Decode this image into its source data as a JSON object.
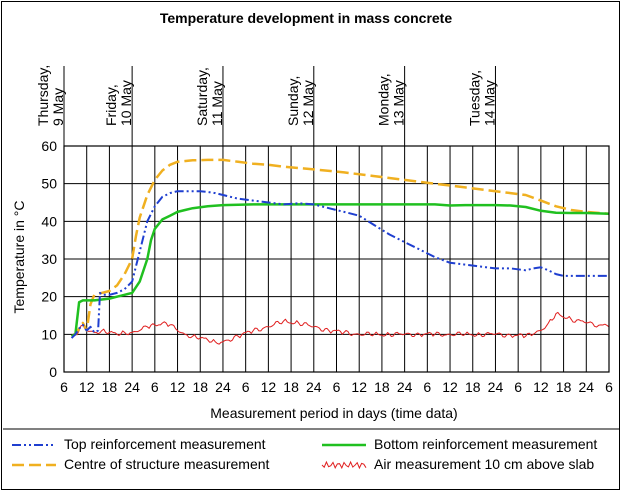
{
  "chart_data": {
    "type": "line",
    "title": "Temperature development in mass concrete",
    "xlabel": "Measurement period in days (time data)",
    "ylabel": "Temperature in °C",
    "ylim": [
      0,
      60
    ],
    "yticks": [
      "0",
      "10",
      "20",
      "30",
      "40",
      "50",
      "60"
    ],
    "xlim": [
      6,
      150
    ],
    "xticks": [
      "6",
      "12",
      "18",
      "24",
      "6",
      "12",
      "18",
      "24",
      "6",
      "12",
      "18",
      "24",
      "6",
      "12",
      "18",
      "24",
      "6",
      "12",
      "18",
      "24",
      "6",
      "12",
      "18",
      "24",
      "6"
    ],
    "day_labels": [
      {
        "line1": "Thursday,",
        "line2": "9 May",
        "x": 6
      },
      {
        "line1": "Friday,",
        "line2": "10 May",
        "x": 24
      },
      {
        "line1": "Saturday,",
        "line2": "11 May",
        "x": 48
      },
      {
        "line1": "Sunday,",
        "line2": "12 May",
        "x": 72
      },
      {
        "line1": "Monday,",
        "line2": "13 May",
        "x": 96
      },
      {
        "line1": "Tuesday,",
        "line2": "14 May",
        "x": 120
      }
    ],
    "grid": true,
    "legend_position": "bottom",
    "series": [
      {
        "name": "Top reinforcement measurement",
        "color": "#1f3fd0",
        "style": "dash-dot-dot",
        "x": [
          8,
          9,
          10,
          11,
          12,
          13,
          14,
          15,
          15.5,
          16,
          18,
          20,
          22,
          24,
          26,
          28,
          30,
          32,
          34,
          36,
          38,
          40,
          42,
          44,
          46,
          48,
          52,
          56,
          60,
          64,
          68,
          72,
          76,
          80,
          84,
          88,
          92,
          96,
          100,
          104,
          108,
          112,
          116,
          120,
          124,
          128,
          130,
          132,
          134,
          136,
          138,
          140,
          144,
          150
        ],
        "y": [
          9,
          10,
          11.5,
          12.5,
          11,
          12,
          10.5,
          11,
          21,
          20.5,
          20.5,
          21,
          22,
          24,
          32,
          40,
          44,
          46.5,
          47.5,
          48,
          48,
          48,
          48,
          47.8,
          47.5,
          47,
          46,
          45.5,
          45,
          44.5,
          44.8,
          44.5,
          43.5,
          42.5,
          41.5,
          39,
          36.5,
          34.5,
          32.5,
          30.5,
          29,
          28.5,
          28,
          27.5,
          27.5,
          27,
          27.5,
          27.8,
          27,
          26,
          25.5,
          25.5,
          25.5,
          25.5
        ]
      },
      {
        "name": "Bottom reinforcement measurement",
        "color": "#20c020",
        "style": "solid",
        "x": [
          8,
          9,
          10,
          11,
          12,
          14,
          18,
          20,
          22,
          24,
          26,
          28,
          29,
          30,
          32,
          34,
          36,
          38,
          40,
          44,
          48,
          56,
          64,
          72,
          80,
          88,
          96,
          100,
          104,
          108,
          112,
          116,
          120,
          124,
          128,
          132,
          136,
          140,
          144,
          150
        ],
        "y": [
          9.5,
          10,
          18.5,
          19,
          19,
          19,
          19.5,
          20,
          20.5,
          21,
          24,
          30,
          35,
          38,
          40.5,
          41.5,
          42.5,
          43,
          43.5,
          44,
          44.3,
          44.5,
          44.5,
          44.5,
          44.5,
          44.5,
          44.5,
          44.5,
          44.5,
          44.2,
          44.3,
          44.3,
          44.3,
          44.2,
          43.8,
          42.8,
          42.3,
          42.2,
          42.2,
          42
        ]
      },
      {
        "name": "Centre of structure measurement",
        "color": "#f0b020",
        "style": "dashed",
        "x": [
          8,
          9,
          10,
          11,
          12,
          13,
          14,
          16,
          18,
          20,
          22,
          24,
          25,
          26,
          28,
          30,
          32,
          34,
          36,
          40,
          44,
          48,
          52,
          56,
          60,
          64,
          72,
          80,
          88,
          96,
          104,
          112,
          120,
          124,
          128,
          132,
          136,
          140,
          144,
          150
        ],
        "y": [
          9.5,
          10,
          11.5,
          13,
          11,
          18,
          20.5,
          21,
          21.5,
          23,
          26,
          30,
          36,
          41,
          47,
          51,
          53.5,
          55,
          55.8,
          56.2,
          56.3,
          56.3,
          55.8,
          55.3,
          55,
          54.5,
          53.8,
          53,
          52,
          51,
          50,
          49,
          48,
          47.5,
          47,
          45.5,
          44,
          43,
          42.5,
          42
        ]
      },
      {
        "name": "Air measurement 10 cm above slab",
        "color": "#e02020",
        "style": "solid-thin",
        "x": [
          8,
          9,
          10,
          11,
          12,
          14,
          16,
          18,
          20,
          22,
          24,
          26,
          28,
          30,
          32,
          34,
          36,
          38,
          40,
          42,
          44,
          46,
          48,
          52,
          56,
          60,
          64,
          68,
          72,
          76,
          80,
          84,
          88,
          92,
          96,
          100,
          104,
          108,
          112,
          116,
          120,
          124,
          128,
          130,
          132,
          134,
          136,
          138,
          140,
          144,
          150
        ],
        "y": [
          9.5,
          10,
          11,
          12.5,
          11,
          10.5,
          11,
          10.5,
          10,
          10.5,
          10.5,
          11,
          12,
          12.5,
          13,
          12.5,
          11,
          10,
          9.5,
          9,
          8.5,
          8,
          8,
          9.5,
          11,
          12,
          13.5,
          13,
          12,
          11,
          10.5,
          10,
          10,
          10,
          10,
          10,
          10,
          10,
          10,
          10,
          10,
          9.8,
          9.5,
          10,
          11,
          13,
          15.5,
          14.5,
          14,
          13,
          12
        ]
      }
    ]
  }
}
